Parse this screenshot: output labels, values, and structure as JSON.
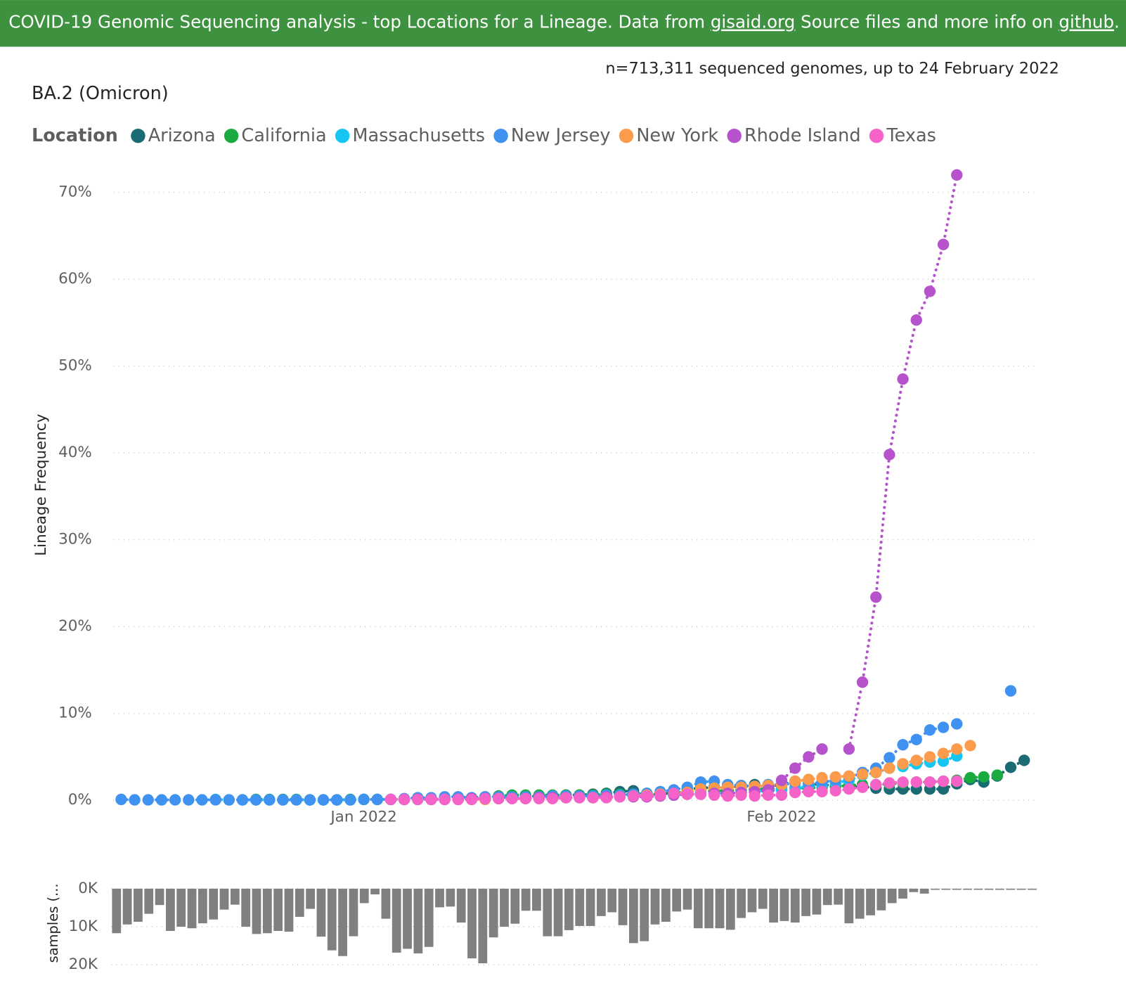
{
  "header": {
    "parts": [
      "COVID-19 Genomic Sequencing analysis - top Locations for a Lineage. Data from ",
      "gisaid.org",
      " Source files and more info on ",
      "github",
      "."
    ]
  },
  "chart_data": [
    {
      "type": "line",
      "title": "BA.2 (Omicron)",
      "subtitle": "n=713,311 sequenced genomes, up to 24 February 2022",
      "legend_title": "Location",
      "y_label": "Lineage Frequency",
      "x": [
        0,
        1,
        2,
        3,
        4,
        5,
        6,
        7,
        8,
        9,
        10,
        11,
        12,
        13,
        14,
        15,
        16,
        17,
        18,
        19,
        20,
        21,
        22,
        23,
        24,
        25,
        26,
        27,
        28,
        29,
        30,
        31,
        32,
        33,
        34,
        35,
        36,
        37,
        38,
        39,
        40,
        41,
        42,
        43,
        44,
        45,
        46,
        47,
        48,
        49,
        50,
        51,
        52,
        53,
        54,
        55,
        56,
        57,
        58,
        59,
        60,
        61,
        62,
        63,
        64,
        65,
        66,
        67
      ],
      "xlim": [
        -1,
        68
      ],
      "xticks": [
        {
          "value": 18,
          "label": "Jan 2022"
        },
        {
          "value": 49,
          "label": "Feb 2022"
        }
      ],
      "ylim": [
        0,
        72.5
      ],
      "yticks": [
        {
          "value": 0,
          "label": "0%"
        },
        {
          "value": 10,
          "label": "10%"
        },
        {
          "value": 20,
          "label": "20%"
        },
        {
          "value": 30,
          "label": "30%"
        },
        {
          "value": 40,
          "label": "40%"
        },
        {
          "value": 50,
          "label": "50%"
        },
        {
          "value": 60,
          "label": "60%"
        },
        {
          "value": 70,
          "label": "70%"
        }
      ],
      "grid": true,
      "series": [
        {
          "name": "Arizona",
          "color": "#1b6b74",
          "values": [
            null,
            null,
            null,
            null,
            null,
            null,
            null,
            null,
            null,
            null,
            null,
            null,
            null,
            null,
            null,
            null,
            null,
            null,
            null,
            null,
            null,
            null,
            null,
            null,
            null,
            null,
            null,
            null,
            0.3,
            0.4,
            0.4,
            0.5,
            0.5,
            0.6,
            0.6,
            0.7,
            0.8,
            1.0,
            1.1,
            0.7,
            0.7,
            0.9,
            1.3,
            1.4,
            1.5,
            1.7,
            1.5,
            1.8,
            1.6,
            1.8,
            2.2,
            1.9,
            1.8,
            1.7,
            1.5,
            1.6,
            1.4,
            1.3,
            1.3,
            1.3,
            1.3,
            1.3,
            1.9,
            2.4,
            2.1,
            2.8,
            3.8,
            4.6
          ]
        },
        {
          "name": "California",
          "color": "#1aab40",
          "values": [
            null,
            null,
            null,
            null,
            null,
            null,
            null,
            null,
            null,
            null,
            0.1,
            0.1,
            0.1,
            0.1,
            0.05,
            0.05,
            0.05,
            0.1,
            0.1,
            0.1,
            0.1,
            0.1,
            0.2,
            0.2,
            0.2,
            0.3,
            0.3,
            0.4,
            0.5,
            0.6,
            0.6,
            0.6,
            0.6,
            0.6,
            0.6,
            0.6,
            0.7,
            0.7,
            0.7,
            0.8,
            0.8,
            0.9,
            0.9,
            1.0,
            1.1,
            1.1,
            1.2,
            1.3,
            1.3,
            1.3,
            1.4,
            1.4,
            1.5,
            1.6,
            1.7,
            1.8,
            1.8,
            1.9,
            2.0,
            2.1,
            2.1,
            2.2,
            2.3,
            2.6,
            2.7,
            2.9,
            null,
            null
          ]
        },
        {
          "name": "Massachusetts",
          "color": "#15c6f4",
          "values": [
            null,
            null,
            null,
            null,
            null,
            null,
            null,
            0.1,
            0.05,
            0.05,
            0.05,
            0.05,
            0.05,
            0.05,
            0.05,
            0.05,
            0.05,
            0.05,
            0.1,
            0.1,
            0.1,
            0.1,
            0.1,
            0.1,
            0.2,
            0.2,
            0.2,
            0.2,
            0.2,
            0.3,
            0.3,
            0.3,
            0.3,
            0.3,
            0.4,
            0.4,
            0.4,
            0.5,
            0.5,
            0.5,
            0.6,
            0.6,
            0.7,
            0.9,
            0.8,
            0.8,
            0.9,
            1.0,
            1.1,
            1.2,
            1.4,
            1.6,
            1.8,
            2.0,
            2.3,
            2.9,
            3.2,
            3.7,
            3.9,
            4.2,
            4.4,
            4.5,
            5.1,
            null,
            null,
            null,
            null,
            null
          ]
        },
        {
          "name": "New Jersey",
          "color": "#4092f0",
          "values": [
            0.1,
            0.05,
            0.05,
            0.05,
            0.05,
            0.05,
            0.05,
            0.05,
            0.05,
            0.05,
            0.05,
            0.05,
            0.05,
            0.05,
            0.05,
            0.05,
            0.05,
            0.05,
            0.1,
            0.1,
            0.1,
            0.2,
            0.3,
            0.3,
            0.4,
            0.4,
            0.3,
            0.4,
            0.4,
            0.4,
            0.4,
            0.4,
            0.5,
            0.5,
            0.5,
            0.5,
            0.6,
            0.6,
            0.7,
            0.8,
            1.0,
            1.2,
            1.5,
            2.1,
            2.2,
            1.8,
            1.7,
            1.6,
            1.8,
            1.8,
            2.0,
            1.9,
            2.1,
            2.3,
            2.6,
            3.2,
            3.7,
            4.9,
            6.4,
            7.0,
            8.1,
            8.4,
            8.8,
            null,
            null,
            null,
            12.6,
            null
          ]
        },
        {
          "name": "New York",
          "color": "#fd9b4c",
          "values": [
            null,
            null,
            null,
            null,
            null,
            null,
            null,
            null,
            null,
            null,
            null,
            null,
            null,
            null,
            null,
            null,
            null,
            null,
            null,
            null,
            null,
            null,
            null,
            0.1,
            0.1,
            0.1,
            0.1,
            0.1,
            0.2,
            0.2,
            0.2,
            0.2,
            0.2,
            0.3,
            0.3,
            0.3,
            0.3,
            0.4,
            0.5,
            0.6,
            0.7,
            0.8,
            0.9,
            1.3,
            1.4,
            1.5,
            1.5,
            1.6,
            1.7,
            1.8,
            2.2,
            2.4,
            2.6,
            2.7,
            2.8,
            3.0,
            3.2,
            3.7,
            4.2,
            4.6,
            5.0,
            5.4,
            5.9,
            6.3,
            null,
            null,
            null,
            null
          ]
        },
        {
          "name": "Rhode Island",
          "color": "#b552cc",
          "values": [
            null,
            null,
            null,
            null,
            null,
            null,
            null,
            null,
            null,
            null,
            null,
            null,
            null,
            null,
            null,
            null,
            null,
            null,
            null,
            null,
            0.1,
            0.1,
            0.1,
            0.1,
            0.1,
            0.1,
            0.2,
            0.2,
            0.2,
            0.2,
            0.2,
            0.3,
            0.3,
            0.3,
            0.3,
            0.3,
            0.4,
            0.4,
            0.4,
            0.4,
            0.5,
            0.6,
            0.7,
            0.7,
            0.8,
            0.8,
            0.9,
            1.0,
            1.2,
            2.3,
            3.7,
            5.0,
            5.9,
            null,
            5.9,
            13.6,
            23.4,
            39.8,
            48.5,
            55.3,
            58.6,
            64.0,
            72.0,
            null,
            null,
            null,
            null,
            null
          ]
        },
        {
          "name": "Texas",
          "color": "#f563c8",
          "values": [
            null,
            null,
            null,
            null,
            null,
            null,
            null,
            null,
            null,
            null,
            null,
            null,
            null,
            null,
            null,
            null,
            null,
            null,
            null,
            null,
            0.1,
            0.1,
            0.1,
            0.1,
            0.1,
            0.1,
            0.1,
            0.2,
            0.2,
            0.2,
            0.2,
            0.2,
            0.2,
            0.3,
            0.3,
            0.3,
            0.3,
            0.4,
            0.5,
            0.5,
            0.6,
            0.8,
            0.7,
            0.7,
            0.6,
            0.5,
            0.6,
            0.5,
            0.6,
            0.6,
            0.9,
            1.0,
            1.0,
            1.1,
            1.3,
            1.5,
            1.8,
            2.0,
            2.1,
            2.1,
            2.1,
            2.2,
            2.2,
            null,
            null,
            null,
            null,
            null
          ]
        }
      ]
    },
    {
      "type": "bar",
      "y_label": "samples (...",
      "color": "#808080",
      "ylim": [
        0,
        20500
      ],
      "yticks": [
        {
          "value": 0,
          "label": "0K"
        },
        {
          "value": 10000,
          "label": "10K"
        },
        {
          "value": 20000,
          "label": "20K"
        }
      ],
      "inverted": true,
      "grid": true,
      "values": [
        11700,
        9400,
        8700,
        6600,
        4300,
        11100,
        10000,
        10400,
        9100,
        8100,
        5500,
        4200,
        10000,
        11900,
        11700,
        11100,
        11300,
        7400,
        5300,
        12600,
        16200,
        17700,
        12500,
        3800,
        1500,
        7900,
        16800,
        15800,
        17000,
        15300,
        4900,
        4700,
        8900,
        18300,
        19600,
        12800,
        10000,
        9200,
        5800,
        5800,
        12500,
        12500,
        10900,
        9800,
        9800,
        7200,
        6200,
        9600,
        14300,
        13800,
        9400,
        8700,
        6000,
        5500,
        10400,
        10400,
        10400,
        10800,
        7700,
        6200,
        5300,
        8900,
        8500,
        8900,
        7200,
        6800,
        4300,
        4200,
        9100,
        7900,
        7000,
        5700,
        3800,
        2600,
        900,
        1300,
        300,
        300,
        300,
        300,
        300,
        300,
        300,
        300,
        300,
        300
      ]
    }
  ]
}
